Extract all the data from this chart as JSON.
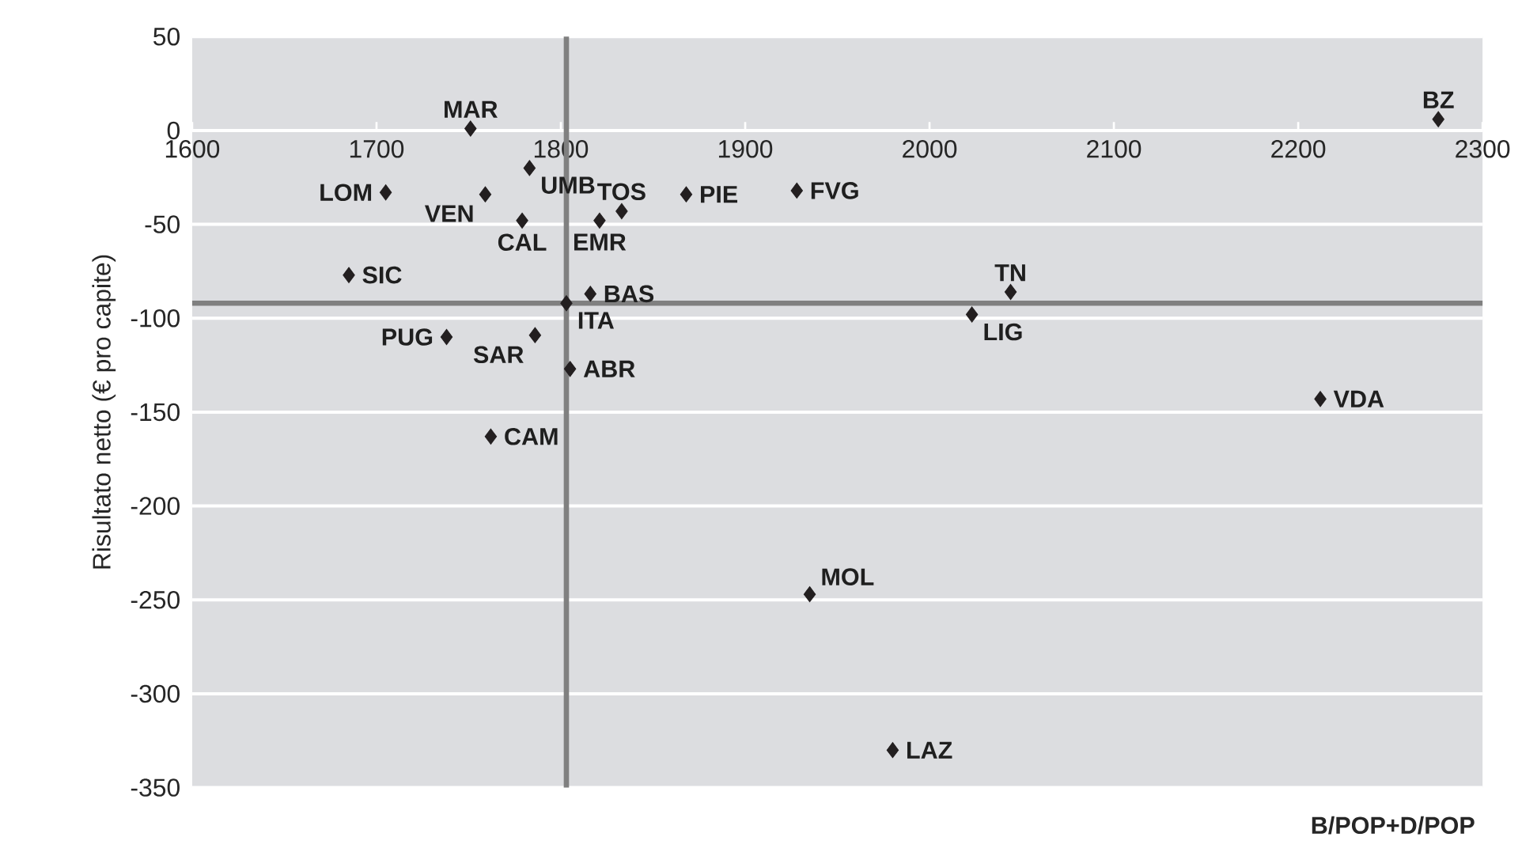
{
  "chart_data": {
    "type": "scatter",
    "xlabel": "B/POP+D/POP",
    "ylabel": "Risultato netto (€ pro capite)",
    "xlim": [
      1600,
      2300
    ],
    "xticks": [
      1600,
      1700,
      1800,
      1900,
      2000,
      2100,
      2200,
      2300
    ],
    "ylim": [
      -350,
      50
    ],
    "yticks": [
      -350,
      -300,
      -250,
      -200,
      -150,
      -100,
      -50,
      0,
      50
    ],
    "grid": "y",
    "marker": "diamond",
    "series": [
      {
        "color": "#231f20",
        "x": [
          1751,
          1783,
          1705,
          1759,
          1779,
          1821,
          1833,
          1868,
          1928,
          1685,
          1803,
          1816,
          1738,
          1786,
          1805,
          1762,
          2276,
          2044,
          2023,
          2212,
          1935,
          1980
        ],
        "values": [
          1,
          -20,
          -33,
          -34,
          -48,
          -48,
          -43,
          -34,
          -32,
          -77,
          -92,
          -87,
          -110,
          -109,
          -127,
          -163,
          6,
          -86,
          -98,
          -143,
          -247,
          -330
        ]
      }
    ],
    "ref_lines": [
      {
        "axis": "x",
        "value": 1803,
        "color": "#808080"
      },
      {
        "axis": "y",
        "value": -92,
        "color": "#808080"
      }
    ],
    "annotations": [
      {
        "text": "MAR",
        "x": 1751,
        "y": 1
      },
      {
        "text": "UMB",
        "x": 1783,
        "y": -20
      },
      {
        "text": "LOM",
        "x": 1705,
        "y": -33
      },
      {
        "text": "VEN",
        "x": 1759,
        "y": -34
      },
      {
        "text": "CAL",
        "x": 1779,
        "y": -48
      },
      {
        "text": "EMR",
        "x": 1821,
        "y": -48
      },
      {
        "text": "TOS",
        "x": 1833,
        "y": -43
      },
      {
        "text": "PIE",
        "x": 1868,
        "y": -34
      },
      {
        "text": "FVG",
        "x": 1928,
        "y": -32
      },
      {
        "text": "SIC",
        "x": 1685,
        "y": -77
      },
      {
        "text": "ITA",
        "x": 1803,
        "y": -92
      },
      {
        "text": "BAS",
        "x": 1816,
        "y": -87
      },
      {
        "text": "PUG",
        "x": 1738,
        "y": -110
      },
      {
        "text": "SAR",
        "x": 1786,
        "y": -109
      },
      {
        "text": "ABR",
        "x": 1805,
        "y": -127
      },
      {
        "text": "CAM",
        "x": 1762,
        "y": -163
      },
      {
        "text": "BZ",
        "x": 2276,
        "y": 6
      },
      {
        "text": "TN",
        "x": 2044,
        "y": -86
      },
      {
        "text": "LIG",
        "x": 2023,
        "y": -98
      },
      {
        "text": "VDA",
        "x": 2212,
        "y": -143
      },
      {
        "text": "MOL",
        "x": 1935,
        "y": -247
      },
      {
        "text": "LAZ",
        "x": 1980,
        "y": -330
      }
    ]
  }
}
